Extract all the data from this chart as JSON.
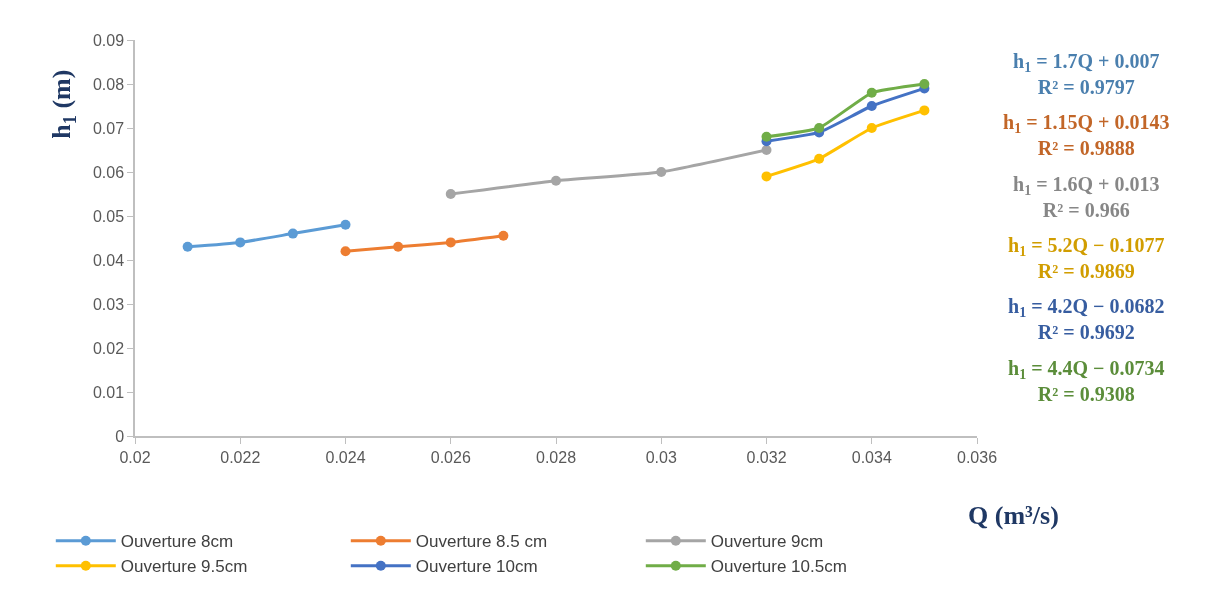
{
  "chart_data": {
    "type": "line",
    "xlabel": "Q (m³/s)",
    "ylabel": "h$_{1}$ (m)",
    "xlim": [
      0.02,
      0.036
    ],
    "xticks": [
      0.02,
      0.022,
      0.024,
      0.026,
      0.028,
      0.03,
      0.032,
      0.034,
      0.036
    ],
    "ylim": [
      0,
      0.09
    ],
    "yticks": [
      0,
      0.01,
      0.02,
      0.03,
      0.04,
      0.05,
      0.06,
      0.07,
      0.08,
      0.09
    ],
    "legend": "bottom",
    "marker": "circle",
    "line_style": "solid",
    "series": [
      {
        "name": "Ouverture 8cm",
        "color": "#5b9bd5",
        "x": [
          0.021,
          0.022,
          0.023,
          0.024
        ],
        "values": [
          0.043,
          0.044,
          0.046,
          0.048
        ]
      },
      {
        "name": "Ouverture 8.5 cm",
        "color": "#ed7d31",
        "x": [
          0.024,
          0.025,
          0.026,
          0.027
        ],
        "values": [
          0.042,
          0.043,
          0.044,
          0.0455
        ]
      },
      {
        "name": "Ouverture 9cm",
        "color": "#a5a5a5",
        "x": [
          0.026,
          0.028,
          0.03,
          0.032
        ],
        "values": [
          0.055,
          0.058,
          0.06,
          0.065
        ]
      },
      {
        "name": "Ouverture 9.5cm",
        "color": "#ffc000",
        "x": [
          0.032,
          0.033,
          0.034,
          0.035
        ],
        "values": [
          0.059,
          0.063,
          0.07,
          0.074
        ]
      },
      {
        "name": "Ouverture 10cm",
        "color": "#4472c4",
        "x": [
          0.032,
          0.033,
          0.034,
          0.035
        ],
        "values": [
          0.067,
          0.069,
          0.075,
          0.079
        ]
      },
      {
        "name": "Ouverture 10.5cm",
        "color": "#70ad47",
        "x": [
          0.032,
          0.033,
          0.034,
          0.035
        ],
        "values": [
          0.068,
          0.07,
          0.078,
          0.08
        ]
      }
    ],
    "annotations": [
      "h$_{1}$ = 1.7Q + 0.007\nR² = 0.9797",
      "h$_{1}$ = 1.15Q + 0.0143\nR² = 0.9888",
      "h$_{1}$ = 1.6Q + 0.013\nR² = 0.966",
      "h$_{1}$ = 5.2Q − 0.1077\nR² = 0.9869",
      "h$_{1}$ = 4.2Q − 0.0682\nR² = 0.9692",
      "h$_{1}$ = 4.4Q − 0.0734\nR² = 0.9308"
    ]
  }
}
